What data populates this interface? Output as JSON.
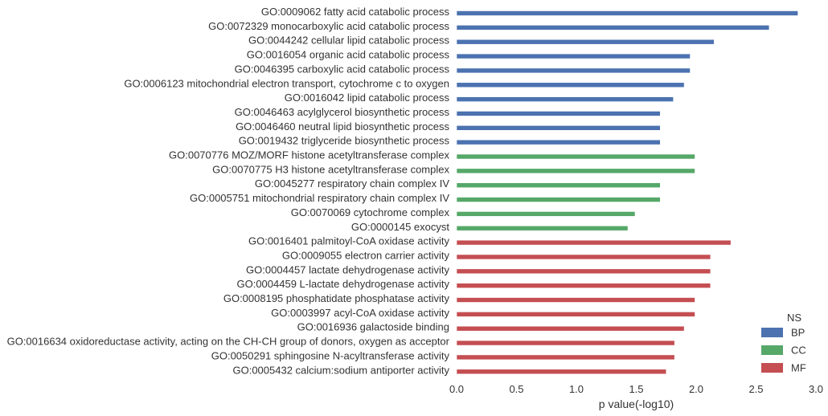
{
  "chart_data": {
    "type": "bar",
    "orientation": "horizontal",
    "xlabel": "p value(-log10)",
    "ylabel": "",
    "xlim": [
      0.0,
      3.0
    ],
    "x_ticks": [
      "0.0",
      "0.5",
      "1.0",
      "1.5",
      "2.0",
      "2.5",
      "3.0"
    ],
    "grid": false,
    "legend": {
      "title": "NS",
      "placement": "bottom-right",
      "entries": [
        {
          "name": "BP",
          "color": "#4c72b0"
        },
        {
          "name": "CC",
          "color": "#55a868"
        },
        {
          "name": "MF",
          "color": "#c44e52"
        }
      ]
    },
    "categories": [
      "GO:0009062 fatty acid catabolic process",
      "GO:0072329 monocarboxylic acid catabolic process",
      "GO:0044242 cellular lipid catabolic process",
      "GO:0016054 organic acid catabolic process",
      "GO:0046395 carboxylic acid catabolic process",
      "GO:0006123 mitochondrial electron transport, cytochrome c to oxygen",
      "GO:0016042 lipid catabolic process",
      "GO:0046463 acylglycerol biosynthetic process",
      "GO:0046460 neutral lipid biosynthetic process",
      "GO:0019432 triglyceride biosynthetic process",
      "GO:0070776 MOZ/MORF histone acetyltransferase complex",
      "GO:0070775 H3 histone acetyltransferase complex",
      "GO:0045277 respiratory chain complex IV",
      "GO:0005751 mitochondrial respiratory chain complex IV",
      "GO:0070069 cytochrome complex",
      "GO:0000145 exocyst",
      "GO:0016401 palmitoyl-CoA oxidase activity",
      "GO:0009055 electron carrier activity",
      "GO:0004457 lactate dehydrogenase activity",
      "GO:0004459 L-lactate dehydrogenase activity",
      "GO:0008195 phosphatidate phosphatase activity",
      "GO:0003997 acyl-CoA oxidase activity",
      "GO:0016936 galactoside binding",
      "GO:0016634 oxidoreductase activity, acting on the CH-CH group of donors, oxygen as acceptor",
      "GO:0050291 sphingosine N-acyltransferase activity",
      "GO:0005432 calcium:sodium antiporter activity"
    ],
    "groups": [
      "BP",
      "BP",
      "BP",
      "BP",
      "BP",
      "BP",
      "BP",
      "BP",
      "BP",
      "BP",
      "CC",
      "CC",
      "CC",
      "CC",
      "CC",
      "CC",
      "MF",
      "MF",
      "MF",
      "MF",
      "MF",
      "MF",
      "MF",
      "MF",
      "MF",
      "MF"
    ],
    "values": [
      2.85,
      2.61,
      2.15,
      1.95,
      1.95,
      1.9,
      1.81,
      1.7,
      1.7,
      1.7,
      1.99,
      1.99,
      1.7,
      1.7,
      1.49,
      1.43,
      2.29,
      2.12,
      2.12,
      2.12,
      1.99,
      1.99,
      1.9,
      1.82,
      1.82,
      1.75
    ]
  }
}
